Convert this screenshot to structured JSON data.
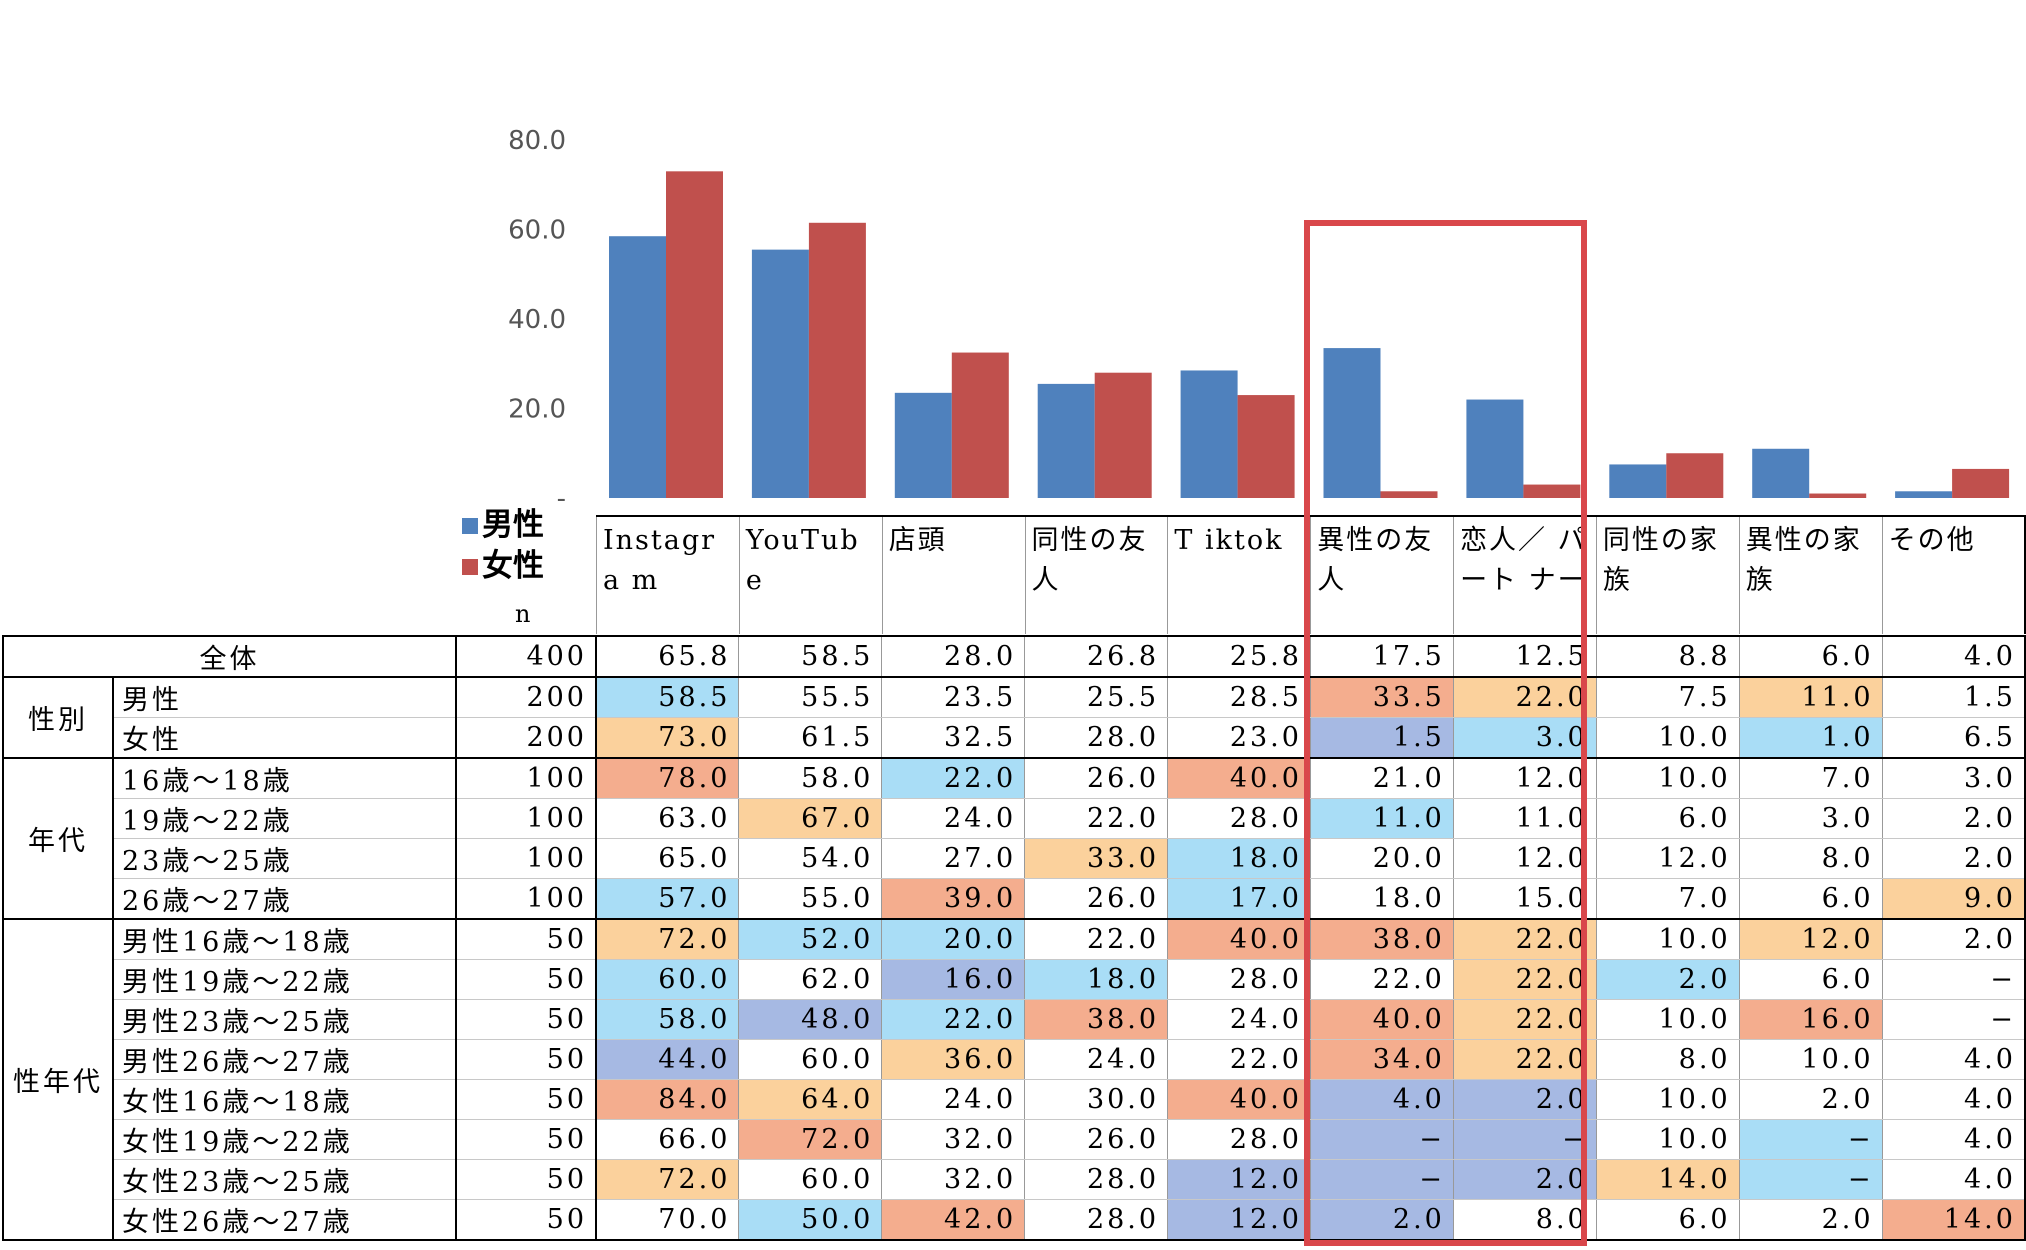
{
  "chart_data": {
    "type": "bar",
    "categories": [
      "Instagram",
      "YouTube",
      "店頭",
      "同性の友人",
      "Tiktok",
      "異性の友人",
      "恋人／パートナー",
      "同性の家族",
      "異性の家族",
      "その他"
    ],
    "category_labels": [
      "Instagra m",
      "YouTub e",
      "店頭",
      "同性の友 人",
      "T iktok",
      "異性の友 人",
      "恋人／ パート ナー",
      "同性の家 族",
      "異性の家 族",
      "その他"
    ],
    "series": [
      {
        "name": "男性",
        "color": "#4f81bd",
        "values": [
          58.5,
          55.5,
          23.5,
          25.5,
          28.5,
          33.5,
          22.0,
          7.5,
          11.0,
          1.5
        ]
      },
      {
        "name": "女性",
        "color": "#c0504d",
        "values": [
          73.0,
          61.5,
          32.5,
          28.0,
          23.0,
          1.5,
          3.0,
          10.0,
          1.0,
          6.5
        ]
      }
    ],
    "ylim": [
      0,
      80
    ],
    "yticks": [
      "-",
      "20.0",
      "40.0",
      "60.0",
      "80.0"
    ],
    "title": "",
    "xlabel": "",
    "ylabel": "",
    "legend_placement": "left",
    "highlight_categories": [
      "異性の友人",
      "恋人／パートナー"
    ],
    "highlight_color": "#d9474b"
  },
  "n_header": "n",
  "table": {
    "columns": [
      "Instagram",
      "YouTube",
      "店頭",
      "同性の友人",
      "Tiktok",
      "異性の友人",
      "恋人／パートナー",
      "同性の家族",
      "異性の家族",
      "その他"
    ],
    "groups": [
      {
        "label": "",
        "rows": [
          {
            "label": "全体",
            "n": "400",
            "values": [
              "65.8",
              "58.5",
              "28.0",
              "26.8",
              "25.8",
              "17.5",
              "12.5",
              "8.8",
              "6.0",
              "4.0"
            ],
            "colors": [
              "",
              "",
              "",
              "",
              "",
              "",
              "",
              "",
              "",
              ""
            ]
          }
        ]
      },
      {
        "label": "性別",
        "rows": [
          {
            "label": "男性",
            "n": "200",
            "values": [
              "58.5",
              "55.5",
              "23.5",
              "25.5",
              "28.5",
              "33.5",
              "22.0",
              "7.5",
              "11.0",
              "1.5"
            ],
            "colors": [
              "blue",
              "",
              "",
              "",
              "",
              "salmon",
              "orange",
              "",
              "orange",
              ""
            ]
          },
          {
            "label": "女性",
            "n": "200",
            "values": [
              "73.0",
              "61.5",
              "32.5",
              "28.0",
              "23.0",
              "1.5",
              "3.0",
              "10.0",
              "1.0",
              "6.5"
            ],
            "colors": [
              "orange",
              "",
              "",
              "",
              "",
              "navy",
              "blue",
              "",
              "blue",
              ""
            ]
          }
        ]
      },
      {
        "label": "年代",
        "rows": [
          {
            "label": "16歳〜18歳",
            "n": "100",
            "values": [
              "78.0",
              "58.0",
              "22.0",
              "26.0",
              "40.0",
              "21.0",
              "12.0",
              "10.0",
              "7.0",
              "3.0"
            ],
            "colors": [
              "salmon",
              "",
              "blue",
              "",
              "salmon",
              "",
              "",
              "",
              "",
              ""
            ]
          },
          {
            "label": "19歳〜22歳",
            "n": "100",
            "values": [
              "63.0",
              "67.0",
              "24.0",
              "22.0",
              "28.0",
              "11.0",
              "11.0",
              "6.0",
              "3.0",
              "2.0"
            ],
            "colors": [
              "",
              "orange",
              "",
              "",
              "",
              "blue",
              "",
              "",
              "",
              ""
            ]
          },
          {
            "label": "23歳〜25歳",
            "n": "100",
            "values": [
              "65.0",
              "54.0",
              "27.0",
              "33.0",
              "18.0",
              "20.0",
              "12.0",
              "12.0",
              "8.0",
              "2.0"
            ],
            "colors": [
              "",
              "",
              "",
              "orange",
              "blue",
              "",
              "",
              "",
              "",
              ""
            ]
          },
          {
            "label": "26歳〜27歳",
            "n": "100",
            "values": [
              "57.0",
              "55.0",
              "39.0",
              "26.0",
              "17.0",
              "18.0",
              "15.0",
              "7.0",
              "6.0",
              "9.0"
            ],
            "colors": [
              "blue",
              "",
              "salmon",
              "",
              "blue",
              "",
              "",
              "",
              "",
              "orange"
            ]
          }
        ]
      },
      {
        "label": "性年代",
        "rows": [
          {
            "label": "男性16歳〜18歳",
            "n": "50",
            "values": [
              "72.0",
              "52.0",
              "20.0",
              "22.0",
              "40.0",
              "38.0",
              "22.0",
              "10.0",
              "12.0",
              "2.0"
            ],
            "colors": [
              "orange",
              "blue",
              "blue",
              "",
              "salmon",
              "salmon",
              "orange",
              "",
              "orange",
              ""
            ]
          },
          {
            "label": "男性19歳〜22歳",
            "n": "50",
            "values": [
              "60.0",
              "62.0",
              "16.0",
              "18.0",
              "28.0",
              "22.0",
              "22.0",
              "2.0",
              "6.0",
              "−"
            ],
            "colors": [
              "blue",
              "",
              "navy",
              "blue",
              "",
              "",
              "orange",
              "blue",
              "",
              ""
            ]
          },
          {
            "label": "男性23歳〜25歳",
            "n": "50",
            "values": [
              "58.0",
              "48.0",
              "22.0",
              "38.0",
              "24.0",
              "40.0",
              "22.0",
              "10.0",
              "16.0",
              "−"
            ],
            "colors": [
              "blue",
              "navy",
              "blue",
              "salmon",
              "",
              "salmon",
              "orange",
              "",
              "salmon",
              ""
            ]
          },
          {
            "label": "男性26歳〜27歳",
            "n": "50",
            "values": [
              "44.0",
              "60.0",
              "36.0",
              "24.0",
              "22.0",
              "34.0",
              "22.0",
              "8.0",
              "10.0",
              "4.0"
            ],
            "colors": [
              "navy",
              "",
              "orange",
              "",
              "",
              "salmon",
              "orange",
              "",
              "",
              ""
            ]
          },
          {
            "label": "女性16歳〜18歳",
            "n": "50",
            "values": [
              "84.0",
              "64.0",
              "24.0",
              "30.0",
              "40.0",
              "4.0",
              "2.0",
              "10.0",
              "2.0",
              "4.0"
            ],
            "colors": [
              "salmon",
              "orange",
              "",
              "",
              "salmon",
              "navy",
              "navy",
              "",
              "",
              ""
            ]
          },
          {
            "label": "女性19歳〜22歳",
            "n": "50",
            "values": [
              "66.0",
              "72.0",
              "32.0",
              "26.0",
              "28.0",
              "−",
              "−",
              "10.0",
              "−",
              "4.0"
            ],
            "colors": [
              "",
              "salmon",
              "",
              "",
              "",
              "navy",
              "navy",
              "",
              "blue",
              ""
            ]
          },
          {
            "label": "女性23歳〜25歳",
            "n": "50",
            "values": [
              "72.0",
              "60.0",
              "32.0",
              "28.0",
              "12.0",
              "−",
              "2.0",
              "14.0",
              "−",
              "4.0"
            ],
            "colors": [
              "orange",
              "",
              "",
              "",
              "navy",
              "navy",
              "navy",
              "orange",
              "blue",
              ""
            ]
          },
          {
            "label": "女性26歳〜27歳",
            "n": "50",
            "values": [
              "70.0",
              "50.0",
              "42.0",
              "28.0",
              "12.0",
              "2.0",
              "8.0",
              "6.0",
              "2.0",
              "14.0"
            ],
            "colors": [
              "",
              "blue",
              "salmon",
              "",
              "navy",
              "navy",
              "",
              "",
              "",
              "salmon"
            ]
          }
        ]
      }
    ]
  }
}
